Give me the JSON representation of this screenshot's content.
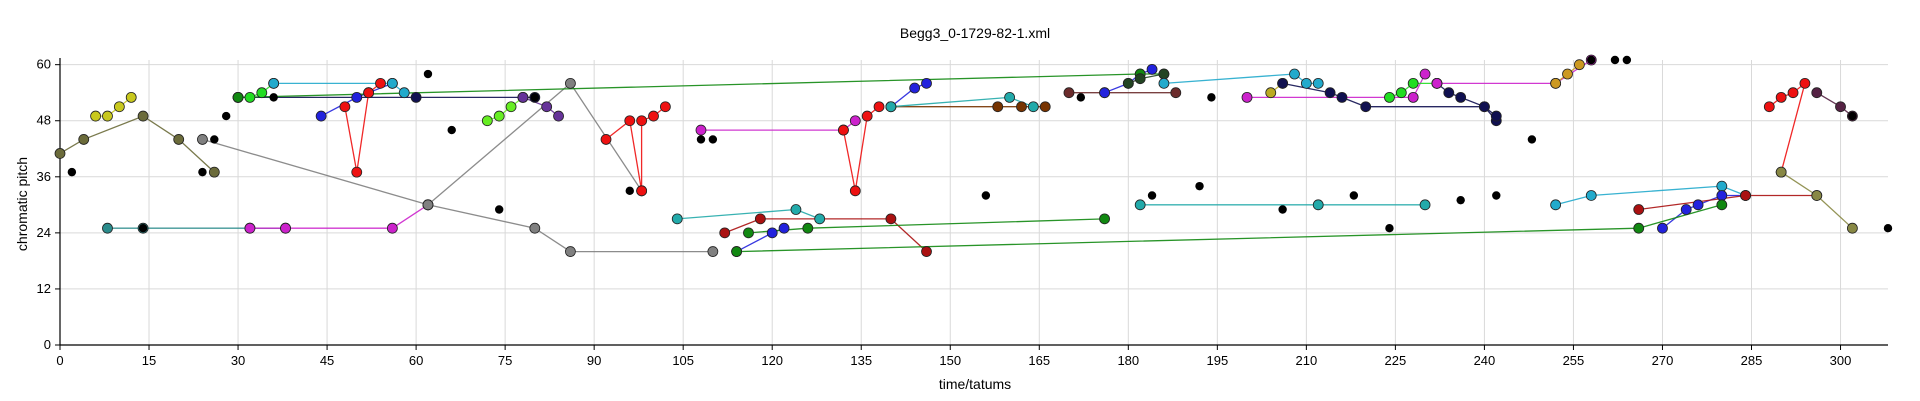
{
  "chart_data": {
    "type": "scatter",
    "title": "Begg3_0-1729-82-1.xml",
    "xlabel": "time/tatums",
    "ylabel": "chromatic pitch",
    "xlim": [
      0,
      308
    ],
    "ylim": [
      0,
      61
    ],
    "xticks": [
      0,
      15,
      30,
      45,
      60,
      75,
      90,
      105,
      120,
      135,
      150,
      165,
      180,
      195,
      210,
      225,
      240,
      255,
      270,
      285,
      300
    ],
    "yticks": [
      0,
      12,
      24,
      36,
      48,
      60
    ],
    "grid": true,
    "series": [
      {
        "name": "olive-1",
        "color": "#6b6b3a",
        "points": [
          [
            0,
            41
          ],
          [
            4,
            44
          ],
          [
            14,
            49
          ],
          [
            20,
            44
          ],
          [
            26,
            37
          ]
        ]
      },
      {
        "name": "yellow-1",
        "color": "#c8c81e",
        "points": [
          [
            6,
            49
          ],
          [
            8,
            49
          ],
          [
            10,
            51
          ],
          [
            12,
            53
          ]
        ]
      },
      {
        "name": "teal-1",
        "color": "#2b8c8c",
        "points": [
          [
            8,
            25
          ],
          [
            14,
            25
          ],
          [
            32,
            25
          ],
          [
            38,
            25
          ]
        ]
      },
      {
        "name": "magenta-1",
        "color": "#cc22cc",
        "points": [
          [
            32,
            25
          ],
          [
            38,
            25
          ],
          [
            56,
            25
          ],
          [
            62,
            30
          ]
        ]
      },
      {
        "name": "grey-1",
        "color": "#808080",
        "points": [
          [
            24,
            44
          ],
          [
            62,
            30
          ],
          [
            80,
            25
          ],
          [
            86,
            20
          ],
          [
            110,
            20
          ]
        ]
      },
      {
        "name": "grey-2",
        "color": "#808080",
        "points": [
          [
            62,
            30
          ],
          [
            86,
            56
          ],
          [
            98,
            33
          ]
        ]
      },
      {
        "name": "green-1",
        "color": "#22dd22",
        "points": [
          [
            30,
            53
          ],
          [
            32,
            53
          ],
          [
            34,
            54
          ],
          [
            36,
            56
          ]
        ]
      },
      {
        "name": "blue-1",
        "color": "#2222dd",
        "points": [
          [
            44,
            49
          ],
          [
            50,
            53
          ],
          [
            52,
            54
          ],
          [
            56,
            56
          ]
        ]
      },
      {
        "name": "red-1",
        "color": "#ee1111",
        "points": [
          [
            48,
            51
          ],
          [
            50,
            37
          ],
          [
            52,
            54
          ],
          [
            54,
            56
          ]
        ]
      },
      {
        "name": "cyan-1",
        "color": "#22aacc",
        "points": [
          [
            36,
            56
          ],
          [
            56,
            56
          ],
          [
            58,
            54
          ]
        ]
      },
      {
        "name": "navy-1",
        "color": "#101050",
        "points": [
          [
            30,
            53
          ],
          [
            60,
            53
          ],
          [
            80,
            53
          ]
        ]
      },
      {
        "name": "lime-1",
        "color": "#66ee22",
        "points": [
          [
            72,
            48
          ],
          [
            74,
            49
          ],
          [
            76,
            51
          ],
          [
            78,
            53
          ]
        ]
      },
      {
        "name": "purple-1",
        "color": "#663399",
        "points": [
          [
            78,
            53
          ],
          [
            82,
            51
          ],
          [
            84,
            49
          ]
        ]
      },
      {
        "name": "red-2",
        "color": "#ee1111",
        "points": [
          [
            92,
            44
          ],
          [
            96,
            48
          ],
          [
            98,
            33
          ],
          [
            98,
            48
          ],
          [
            100,
            49
          ],
          [
            102,
            51
          ]
        ]
      },
      {
        "name": "magenta-2",
        "color": "#cc22cc",
        "points": [
          [
            108,
            46
          ],
          [
            132,
            46
          ],
          [
            134,
            48
          ]
        ]
      },
      {
        "name": "red-3",
        "color": "#ee1111",
        "points": [
          [
            132,
            46
          ],
          [
            134,
            33
          ],
          [
            136,
            49
          ],
          [
            138,
            51
          ]
        ]
      },
      {
        "name": "darkred-1",
        "color": "#aa1111",
        "points": [
          [
            112,
            24
          ],
          [
            118,
            27
          ],
          [
            140,
            27
          ],
          [
            146,
            20
          ]
        ]
      },
      {
        "name": "cyan-2",
        "color": "#22aaaa",
        "points": [
          [
            104,
            27
          ],
          [
            124,
            29
          ],
          [
            128,
            27
          ]
        ]
      },
      {
        "name": "blue-2",
        "color": "#2222dd",
        "points": [
          [
            114,
            20
          ],
          [
            120,
            24
          ],
          [
            122,
            25
          ]
        ]
      },
      {
        "name": "green-2",
        "color": "#118811",
        "points": [
          [
            116,
            24
          ],
          [
            126,
            25
          ],
          [
            176,
            27
          ]
        ]
      },
      {
        "name": "blue-3",
        "color": "#2222dd",
        "points": [
          [
            140,
            51
          ],
          [
            144,
            55
          ],
          [
            146,
            56
          ]
        ]
      },
      {
        "name": "darkred-2",
        "color": "#773300",
        "points": [
          [
            140,
            51
          ],
          [
            158,
            51
          ],
          [
            162,
            51
          ],
          [
            166,
            51
          ]
        ]
      },
      {
        "name": "teal-2",
        "color": "#22aaaa",
        "points": [
          [
            140,
            51
          ],
          [
            160,
            53
          ],
          [
            164,
            51
          ]
        ]
      },
      {
        "name": "maroon-1",
        "color": "#6b2b2b",
        "points": [
          [
            170,
            54
          ],
          [
            176,
            54
          ],
          [
            188,
            54
          ]
        ]
      },
      {
        "name": "blue-4",
        "color": "#2222dd",
        "points": [
          [
            176,
            54
          ],
          [
            180,
            56
          ],
          [
            182,
            58
          ],
          [
            184,
            59
          ]
        ]
      },
      {
        "name": "green-3",
        "color": "#118811",
        "points": [
          [
            30,
            53
          ],
          [
            182,
            58
          ],
          [
            186,
            58
          ]
        ]
      },
      {
        "name": "darkgreen-1",
        "color": "#224422",
        "points": [
          [
            180,
            56
          ],
          [
            182,
            57
          ],
          [
            186,
            58
          ]
        ]
      },
      {
        "name": "teal-3",
        "color": "#22aaaa",
        "points": [
          [
            182,
            30
          ],
          [
            212,
            30
          ],
          [
            230,
            30
          ]
        ]
      },
      {
        "name": "magenta-3",
        "color": "#cc22cc",
        "points": [
          [
            200,
            53
          ],
          [
            228,
            53
          ],
          [
            230,
            58
          ]
        ]
      },
      {
        "name": "yellow-2",
        "color": "#bbaa22",
        "points": [
          [
            204,
            54
          ],
          [
            206,
            56
          ]
        ]
      },
      {
        "name": "navy-2",
        "color": "#101050",
        "points": [
          [
            206,
            56
          ],
          [
            214,
            54
          ],
          [
            216,
            53
          ],
          [
            220,
            51
          ],
          [
            240,
            51
          ],
          [
            242,
            48
          ]
        ]
      },
      {
        "name": "green-4",
        "color": "#22dd22",
        "points": [
          [
            224,
            53
          ],
          [
            226,
            54
          ],
          [
            228,
            56
          ],
          [
            232,
            56
          ]
        ]
      },
      {
        "name": "cyan-3",
        "color": "#22aacc",
        "points": [
          [
            186,
            56
          ],
          [
            208,
            58
          ],
          [
            210,
            56
          ],
          [
            212,
            56
          ]
        ]
      },
      {
        "name": "navy-3",
        "color": "#101050",
        "points": [
          [
            232,
            56
          ],
          [
            234,
            54
          ],
          [
            236,
            53
          ],
          [
            240,
            51
          ],
          [
            242,
            49
          ]
        ]
      },
      {
        "name": "magenta-4",
        "color": "#cc22cc",
        "points": [
          [
            232,
            56
          ],
          [
            252,
            56
          ],
          [
            258,
            61
          ]
        ]
      },
      {
        "name": "gold-1",
        "color": "#cc9922",
        "points": [
          [
            252,
            56
          ],
          [
            254,
            58
          ],
          [
            256,
            60
          ]
        ]
      },
      {
        "name": "cyan-4",
        "color": "#22aacc",
        "points": [
          [
            252,
            30
          ],
          [
            258,
            32
          ],
          [
            280,
            34
          ],
          [
            284,
            32
          ]
        ]
      },
      {
        "name": "blue-5",
        "color": "#2222dd",
        "points": [
          [
            270,
            25
          ],
          [
            274,
            29
          ],
          [
            276,
            30
          ],
          [
            280,
            32
          ],
          [
            284,
            32
          ]
        ]
      },
      {
        "name": "darkred-3",
        "color": "#aa1111",
        "points": [
          [
            266,
            29
          ],
          [
            284,
            32
          ],
          [
            296,
            32
          ]
        ]
      },
      {
        "name": "red-4",
        "color": "#ee1111",
        "points": [
          [
            288,
            51
          ],
          [
            290,
            53
          ],
          [
            292,
            54
          ],
          [
            294,
            56
          ],
          [
            290,
            37
          ]
        ]
      },
      {
        "name": "olive-2",
        "color": "#888844",
        "points": [
          [
            290,
            37
          ],
          [
            296,
            32
          ],
          [
            302,
            25
          ]
        ]
      },
      {
        "name": "purple-2",
        "color": "#552244",
        "points": [
          [
            296,
            54
          ],
          [
            300,
            51
          ],
          [
            302,
            49
          ]
        ]
      },
      {
        "name": "green-5",
        "color": "#118811",
        "points": [
          [
            114,
            20
          ],
          [
            266,
            25
          ],
          [
            280,
            30
          ]
        ]
      }
    ],
    "isolated_points": [
      [
        2,
        37
      ],
      [
        14,
        25
      ],
      [
        24,
        37
      ],
      [
        26,
        44
      ],
      [
        28,
        49
      ],
      [
        36,
        53
      ],
      [
        62,
        58
      ],
      [
        66,
        46
      ],
      [
        74,
        29
      ],
      [
        80,
        53
      ],
      [
        96,
        33
      ],
      [
        108,
        44
      ],
      [
        110,
        44
      ],
      [
        156,
        32
      ],
      [
        172,
        53
      ],
      [
        184,
        32
      ],
      [
        192,
        34
      ],
      [
        194,
        53
      ],
      [
        206,
        29
      ],
      [
        218,
        32
      ],
      [
        224,
        25
      ],
      [
        236,
        31
      ],
      [
        242,
        32
      ],
      [
        248,
        44
      ],
      [
        258,
        61
      ],
      [
        262,
        61
      ],
      [
        264,
        61
      ],
      [
        302,
        49
      ],
      [
        308,
        25
      ]
    ]
  }
}
